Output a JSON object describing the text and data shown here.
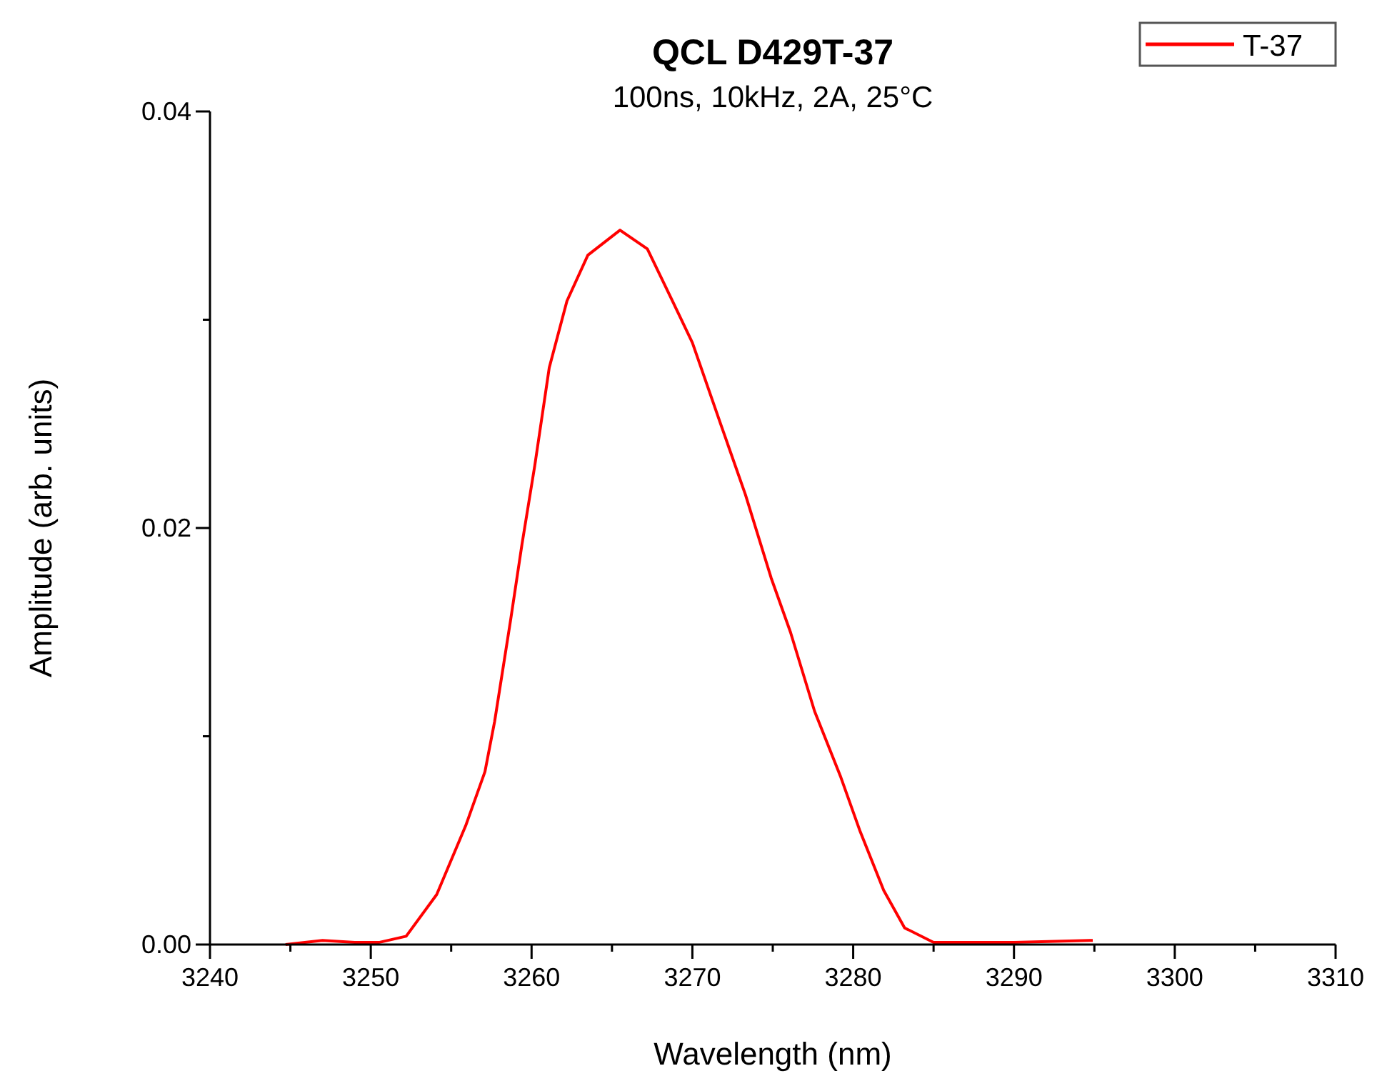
{
  "chart_data": {
    "type": "line",
    "title": "QCL D429T-37",
    "subtitle": "100ns, 10kHz, 2A, 25°C",
    "xlabel": "Wavelength (nm)",
    "ylabel": "Amplitude (arb. units)",
    "xlim": [
      3240,
      3310
    ],
    "xticks": [
      3240,
      {
        "value": 3245,
        "label": null
      },
      3250,
      {
        "value": 3255,
        "label": null
      },
      3260,
      {
        "value": 3265,
        "label": null
      },
      3270,
      {
        "value": 3275,
        "label": null
      },
      3280,
      {
        "value": 3285,
        "label": null
      },
      3290,
      {
        "value": 3295,
        "label": null
      },
      3300,
      {
        "value": 3305,
        "label": null
      },
      3310
    ],
    "ylim": [
      0,
      0.04
    ],
    "yticks": [
      {
        "value": 0,
        "label": "0.00"
      },
      {
        "value": 0.01,
        "label": null
      },
      0.02,
      {
        "value": 0.03,
        "label": null
      },
      0.04
    ],
    "grid": false,
    "legend": "top right",
    "marker": "none",
    "line_style": "solid",
    "series": [
      {
        "name": "T-37",
        "color": "#ff0000",
        "x": [
          3244.7,
          3247,
          3249,
          3250.5,
          3252.2,
          3254.1,
          3255.9,
          3257.1,
          3257.7,
          3258.7,
          3259.4,
          3260.2,
          3261.1,
          3262.2,
          3263.5,
          3265.5,
          3267.2,
          3268.7,
          3270.0,
          3271.8,
          3273.3,
          3274.9,
          3276.1,
          3277.6,
          3279.2,
          3280.4,
          3281.9,
          3283.2,
          3285,
          3290,
          3294.9
        ],
        "values": [
          0,
          0.0002,
          0.0001,
          0.0001,
          0.0004,
          0.0024,
          0.0057,
          0.0083,
          0.0107,
          0.0156,
          0.0192,
          0.023,
          0.0277,
          0.0309,
          0.0331,
          0.0343,
          0.0334,
          0.031,
          0.0289,
          0.0249,
          0.0216,
          0.0176,
          0.015,
          0.0112,
          0.0081,
          0.0055,
          0.0026,
          0.0008,
          0.0001,
          0.0001,
          0.0002
        ]
      }
    ]
  }
}
